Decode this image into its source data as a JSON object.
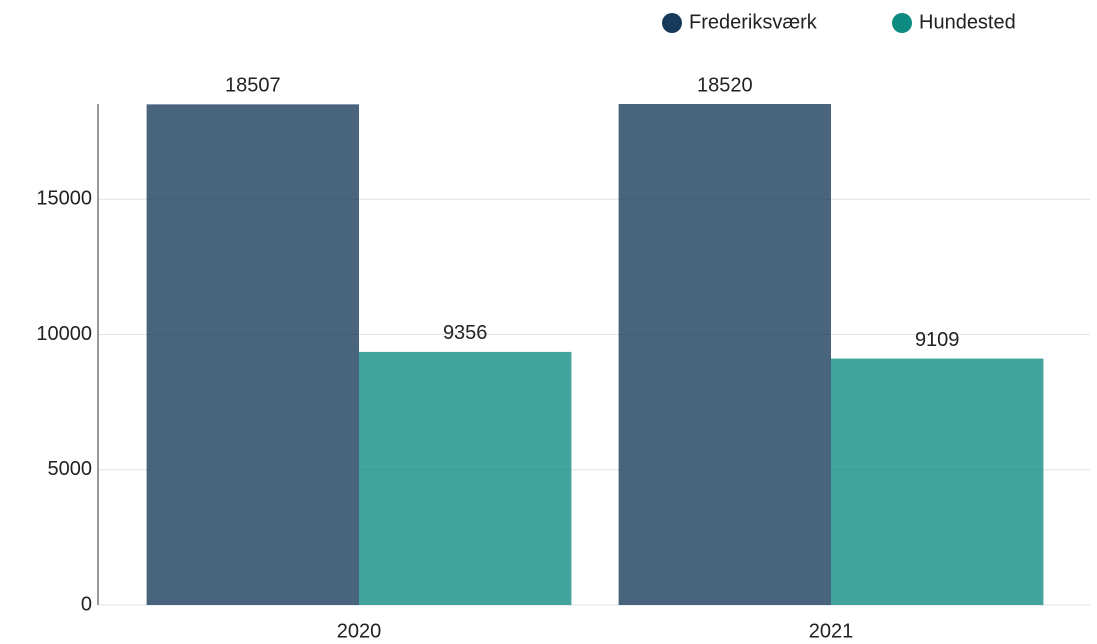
{
  "chart_data": {
    "type": "bar",
    "categories": [
      "2020",
      "2021"
    ],
    "series": [
      {
        "name": "Frederiksværk",
        "color": "#163a5a",
        "values": [
          18507,
          18520
        ]
      },
      {
        "name": "Hundested",
        "color": "#0d8b80",
        "values": [
          9356,
          9109
        ]
      }
    ],
    "ylim": [
      0,
      18520
    ],
    "yticks": [
      0,
      5000,
      10000,
      15000
    ],
    "grid": true,
    "legend": "top-right"
  }
}
